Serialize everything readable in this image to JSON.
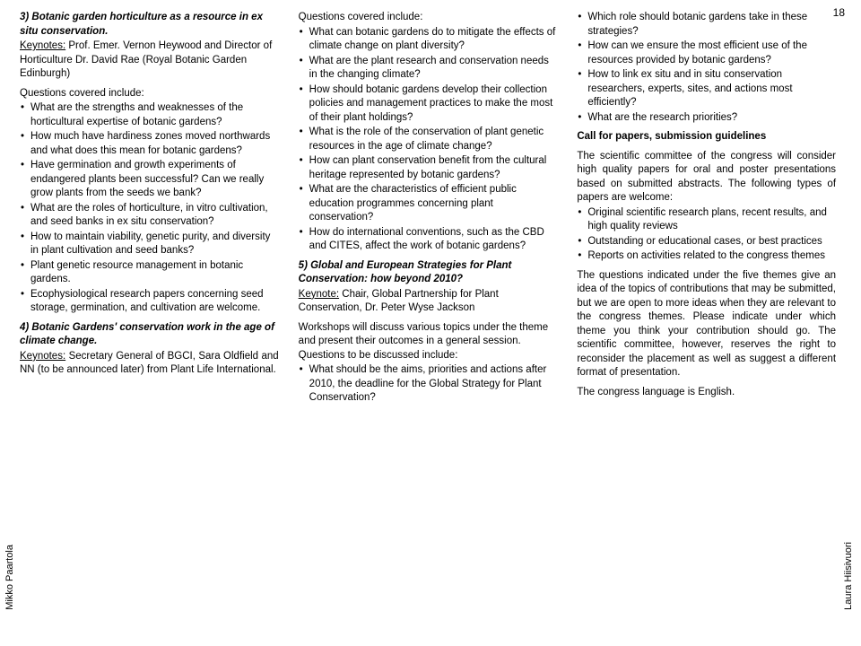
{
  "page_number": "18",
  "side_left": "Mikko Paartola",
  "side_right": "Laura Hiisivuori",
  "col1": {
    "s3_title": "3) Botanic garden horticulture as a resource in ex situ conservation.",
    "s3_keynotes_label": "Keynotes:",
    "s3_keynotes_text": " Prof. Emer. Vernon Heywood and Director of Horticulture Dr. David Rae (Royal Botanic Garden Edinburgh)",
    "s3_q_intro": "Questions covered include:",
    "s3_items": [
      "What are the strengths and weaknesses of the horticultural expertise of botanic gardens?",
      "How much have hardiness zones moved northwards and what does this mean for botanic gardens?",
      "Have germination and growth experiments of endangered plants been successful? Can we really grow plants from the seeds we bank?",
      "What are the roles of horticulture, in vitro cultivation, and seed banks in ex situ conservation?",
      "How to maintain viability, genetic purity, and diversity in plant cultivation and seed banks?",
      "Plant genetic resource management in botanic gardens.",
      "Ecophysiological research papers concerning seed storage, germination, and cultivation are welcome."
    ],
    "s4_title": "4) Botanic Gardens' conservation work in the age of climate change.",
    "s4_keynotes_label": "Keynotes:",
    "s4_keynotes_text": " Secretary General of BGCI, Sara Oldfield and NN (to be announced later) from Plant Life International."
  },
  "col2": {
    "q_intro": "Questions covered include:",
    "s4_items": [
      "What can botanic gardens do to mitigate the effects of climate change on plant diversity?",
      "What are the plant research and conservation needs in the changing climate?",
      "How should botanic gardens develop their collection policies and management practices to make the most of their plant holdings?",
      "What is the role of the conservation of plant genetic resources in the age of climate change?",
      "How can plant conservation benefit from the cultural heritage represented by botanic gardens?",
      "What are the characteristics of efficient public education programmes concerning plant conservation?",
      "How do international conventions, such as the CBD and CITES, affect the work of botanic gardens?"
    ],
    "s5_title": "5) Global and European Strategies for Plant Conservation: how beyond 2010?",
    "s5_keynote_label": "Keynote:",
    "s5_keynote_text": " Chair, Global Partnership for Plant Conservation, Dr. Peter Wyse Jackson",
    "s5_workshops": "Workshops will discuss various topics under the theme and present their outcomes in a general session. Questions to be discussed include:",
    "s5_items": [
      "What should be the aims, priorities and actions after 2010, the deadline for the Global Strategy for Plant Conservation?"
    ]
  },
  "col3": {
    "cont_items": [
      "Which role should botanic gardens take in these strategies?",
      "How can we ensure the most efficient use of the resources provided by botanic gardens?",
      "How to link ex situ and in situ conservation researchers, experts, sites, and actions most efficiently?",
      "What are the research priorities?"
    ],
    "cfp_title": "Call for papers, submission guidelines",
    "cfp_p1": "The scientific committee of the congress will consider high quality papers for oral and poster presentations based on submitted abstracts. The following types of papers are welcome:",
    "cfp_items": [
      "Original scientific research plans, recent results, and high quality reviews",
      "Outstanding or educational cases, or best practices",
      "Reports on activities related to the congress themes"
    ],
    "cfp_p2": "The questions indicated under the five themes give an idea of the topics of contributions that may be submitted, but we are open to more ideas when they are relevant to the congress themes. Please indicate under which theme you think your contribution should go. The scientific committee, however, reserves the right to reconsider the placement as well as suggest a different format of presentation.",
    "cfp_p3": "The congress language is English."
  }
}
